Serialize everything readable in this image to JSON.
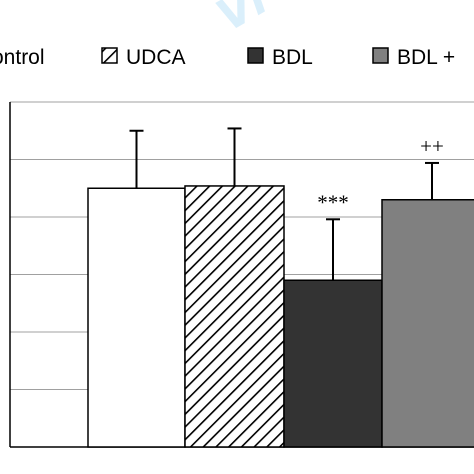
{
  "watermark": {
    "color": "#6fc3f2"
  },
  "chart_data": {
    "type": "bar",
    "categories": [
      "Control",
      "UDCA",
      "BDL",
      "BDL + UDCA"
    ],
    "legend": [
      "ontrol",
      "UDCA",
      "BDL",
      "BDL +"
    ],
    "legend_placement": "top",
    "values": [
      2.25,
      2.27,
      1.45,
      2.15
    ],
    "errors": [
      0.5,
      0.5,
      0.53,
      0.32
    ],
    "annotations": [
      "",
      "",
      "***",
      "++"
    ],
    "fills": [
      "#ffffff",
      "hatch",
      "#333333",
      "#808080"
    ],
    "ylim": [
      0,
      3
    ],
    "grid": true,
    "gridline_count": 6
  }
}
